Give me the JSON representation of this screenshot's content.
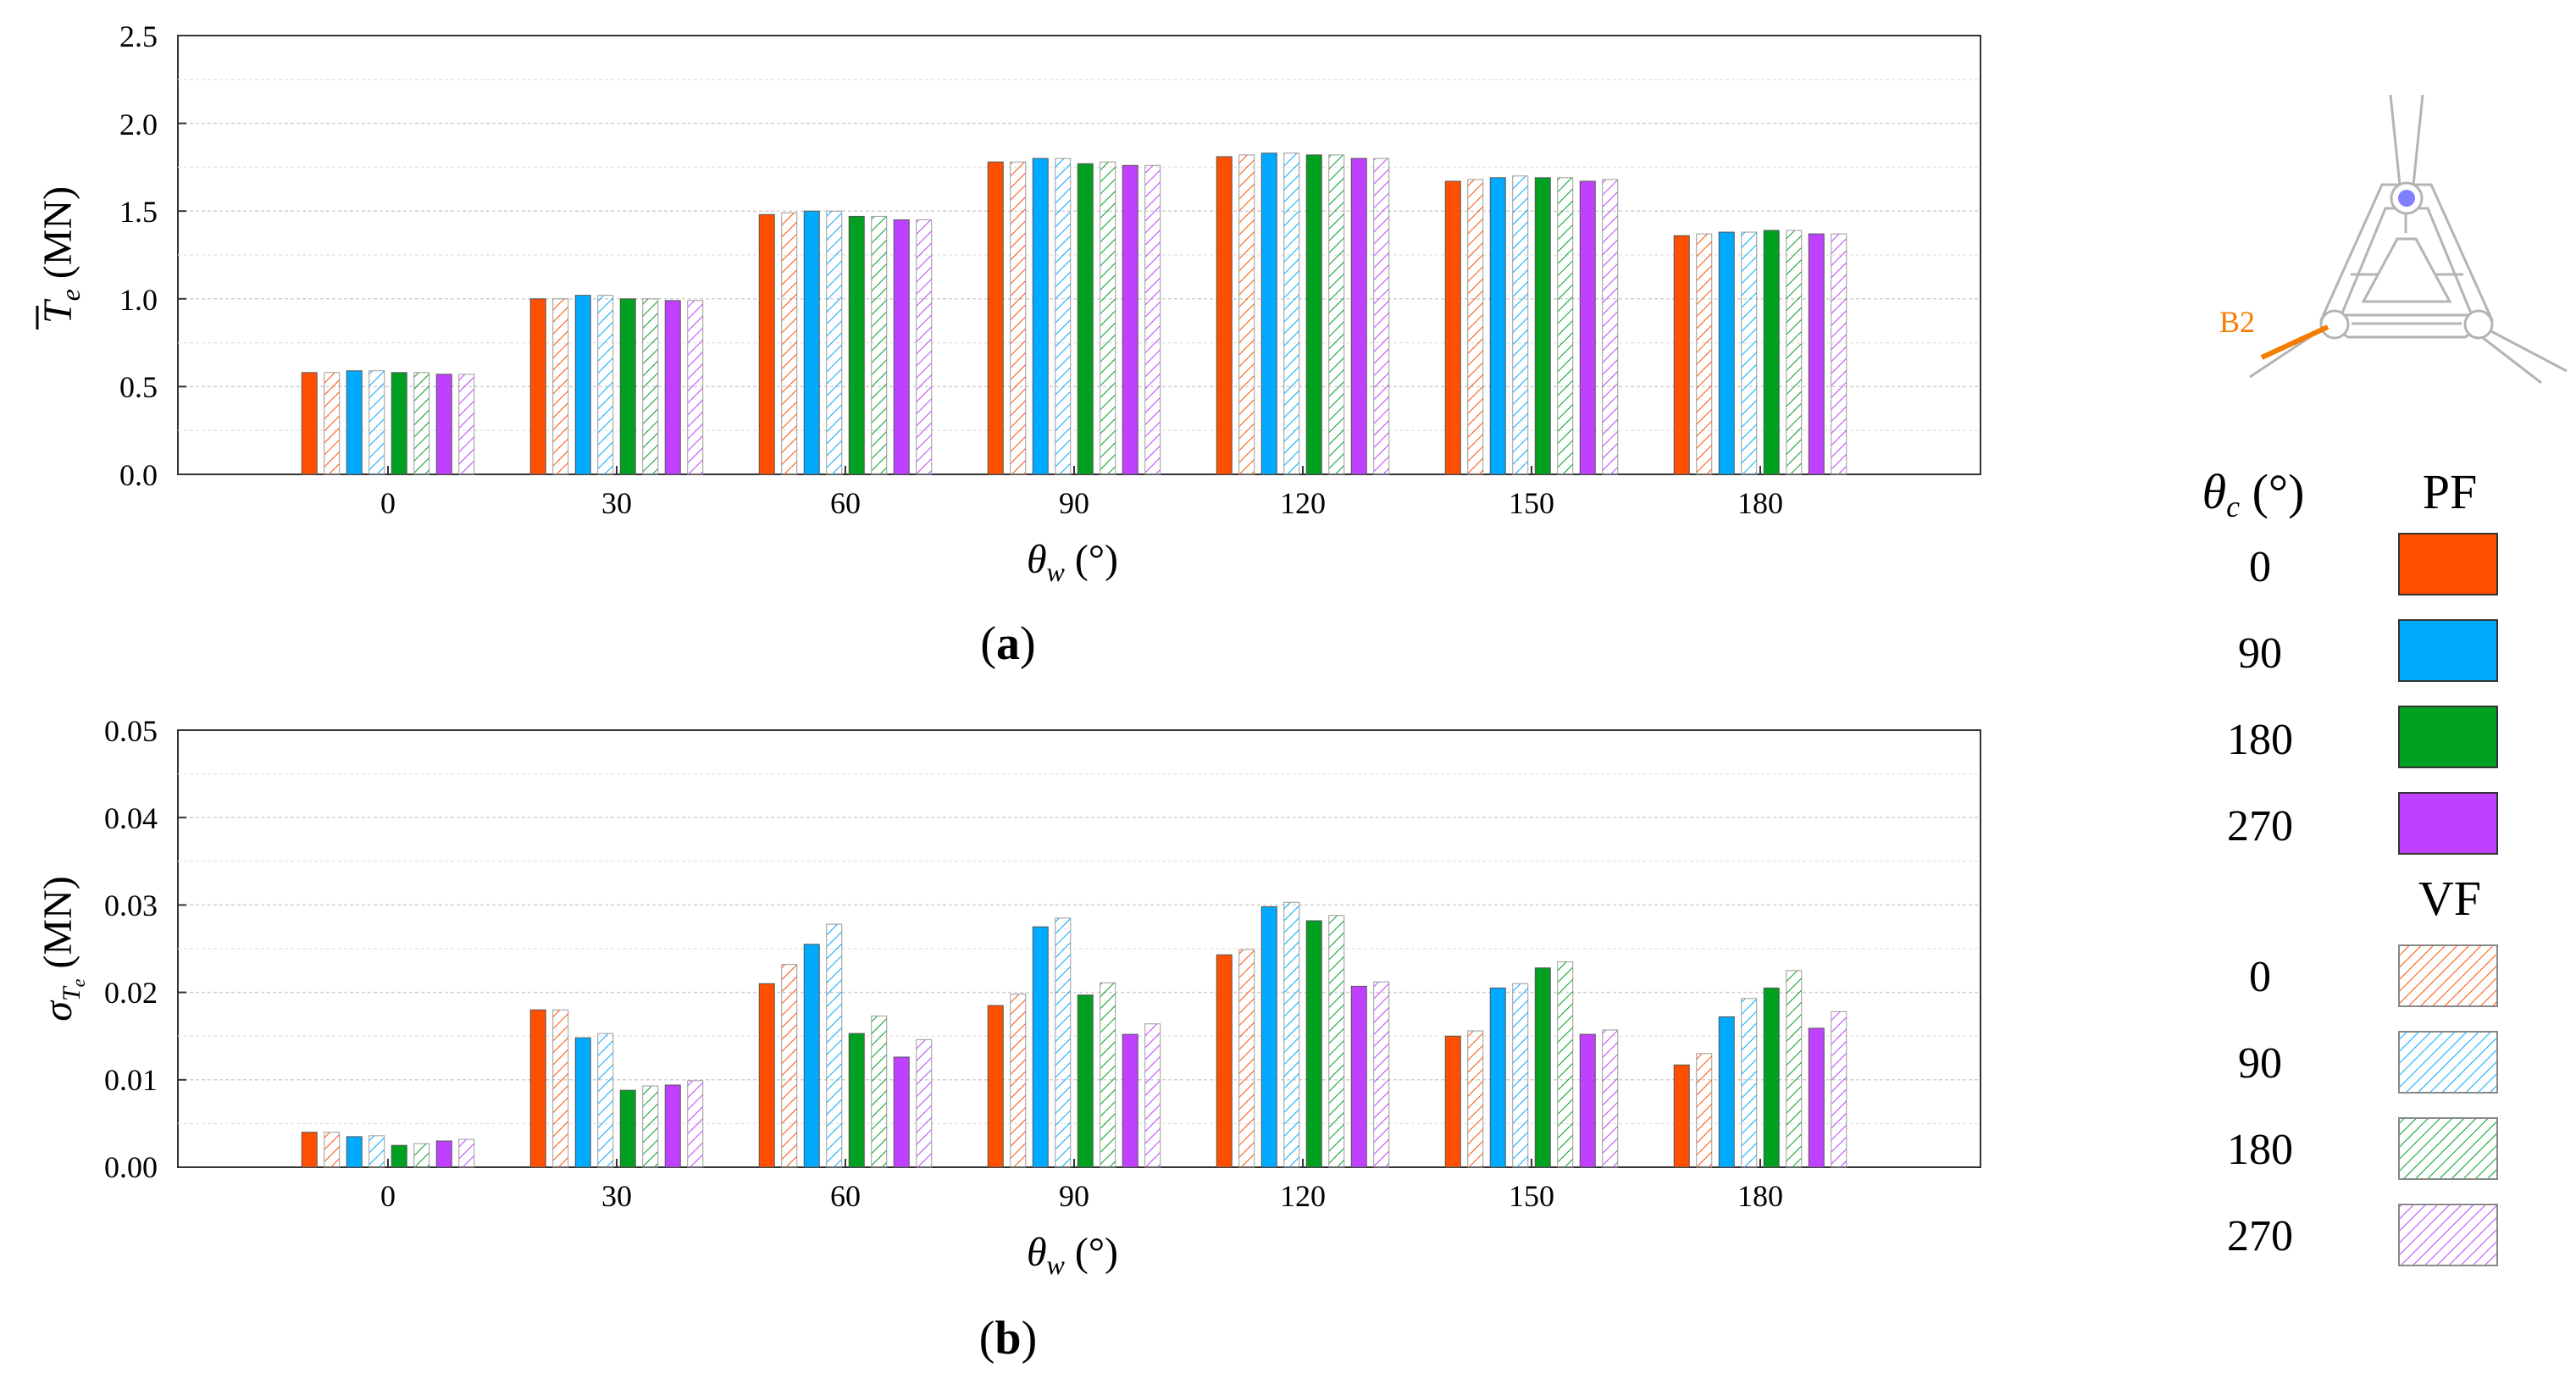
{
  "chart_data": [
    {
      "type": "bar",
      "panel": "(a)",
      "panel_label_prefix": "(",
      "panel_label_letter": "a",
      "panel_label_suffix": ")",
      "categories": [
        "0",
        "30",
        "60",
        "90",
        "120",
        "150",
        "180"
      ],
      "xlabel_symbol": "θ",
      "xlabel_sub": "w",
      "xlabel_unit": " (°)",
      "ylabel_symbol": "T",
      "ylabel_sub": "e",
      "ylabel_unit": " (MN)",
      "ylim": [
        0,
        2.5
      ],
      "yticks": [
        "0.0",
        "0.5",
        "1.0",
        "1.5",
        "2.0",
        "2.5"
      ],
      "grid": true,
      "series": [
        {
          "name": "PF 0",
          "values": [
            0.58,
            1.0,
            1.48,
            1.78,
            1.81,
            1.67,
            1.36
          ]
        },
        {
          "name": "VF 0",
          "values": [
            0.58,
            1.0,
            1.49,
            1.78,
            1.82,
            1.68,
            1.37
          ]
        },
        {
          "name": "PF 90",
          "values": [
            0.59,
            1.02,
            1.5,
            1.8,
            1.83,
            1.69,
            1.38
          ]
        },
        {
          "name": "VF 90",
          "values": [
            0.59,
            1.02,
            1.5,
            1.8,
            1.83,
            1.7,
            1.38
          ]
        },
        {
          "name": "PF 180",
          "values": [
            0.58,
            1.0,
            1.47,
            1.77,
            1.82,
            1.69,
            1.39
          ]
        },
        {
          "name": "VF 180",
          "values": [
            0.58,
            1.0,
            1.47,
            1.78,
            1.82,
            1.69,
            1.39
          ]
        },
        {
          "name": "PF 270",
          "values": [
            0.57,
            0.99,
            1.45,
            1.76,
            1.8,
            1.67,
            1.37
          ]
        },
        {
          "name": "VF 270",
          "values": [
            0.57,
            0.99,
            1.45,
            1.76,
            1.8,
            1.68,
            1.37
          ]
        }
      ]
    },
    {
      "type": "bar",
      "panel": "(b)",
      "panel_label_prefix": "(",
      "panel_label_letter": "b",
      "panel_label_suffix": ")",
      "categories": [
        "0",
        "30",
        "60",
        "90",
        "120",
        "150",
        "180"
      ],
      "xlabel_symbol": "θ",
      "xlabel_sub": "w",
      "xlabel_unit": " (°)",
      "ylabel_symbol": "σ",
      "ylabel_sub": "T",
      "ylabel_subsub": "e",
      "ylabel_unit": " (MN)",
      "ylim": [
        0,
        0.05
      ],
      "yticks": [
        "0.00",
        "0.01",
        "0.02",
        "0.03",
        "0.04",
        "0.05"
      ],
      "grid": true,
      "series": [
        {
          "name": "PF 0",
          "values": [
            0.004,
            0.018,
            0.021,
            0.0185,
            0.0243,
            0.015,
            0.0117
          ]
        },
        {
          "name": "VF 0",
          "values": [
            0.004,
            0.018,
            0.0232,
            0.0198,
            0.0249,
            0.0156,
            0.013
          ]
        },
        {
          "name": "PF 90",
          "values": [
            0.0035,
            0.0148,
            0.0255,
            0.0275,
            0.0298,
            0.0205,
            0.0172
          ]
        },
        {
          "name": "VF 90",
          "values": [
            0.0036,
            0.0153,
            0.0278,
            0.0285,
            0.0303,
            0.021,
            0.0193
          ]
        },
        {
          "name": "PF 180",
          "values": [
            0.0025,
            0.0088,
            0.0153,
            0.0197,
            0.0282,
            0.0228,
            0.0205
          ]
        },
        {
          "name": "VF 180",
          "values": [
            0.0027,
            0.0093,
            0.0173,
            0.0211,
            0.0288,
            0.0235,
            0.0225
          ]
        },
        {
          "name": "PF 270",
          "values": [
            0.003,
            0.0094,
            0.0126,
            0.0152,
            0.0207,
            0.0152,
            0.0159
          ]
        },
        {
          "name": "VF 270",
          "values": [
            0.0032,
            0.0099,
            0.0146,
            0.0164,
            0.0212,
            0.0157,
            0.0178
          ]
        }
      ]
    }
  ],
  "colors": {
    "0": "#ff4f00",
    "90": "#00aaff",
    "180": "#00a020",
    "270": "#bf40ff"
  },
  "legend": {
    "header_symbol": "θ",
    "header_sub": "c",
    "header_unit": " (°)",
    "pf_title": "PF",
    "vf_title": "VF",
    "entries": [
      "0",
      "90",
      "180",
      "270"
    ]
  },
  "diagram": {
    "label": "B2"
  }
}
